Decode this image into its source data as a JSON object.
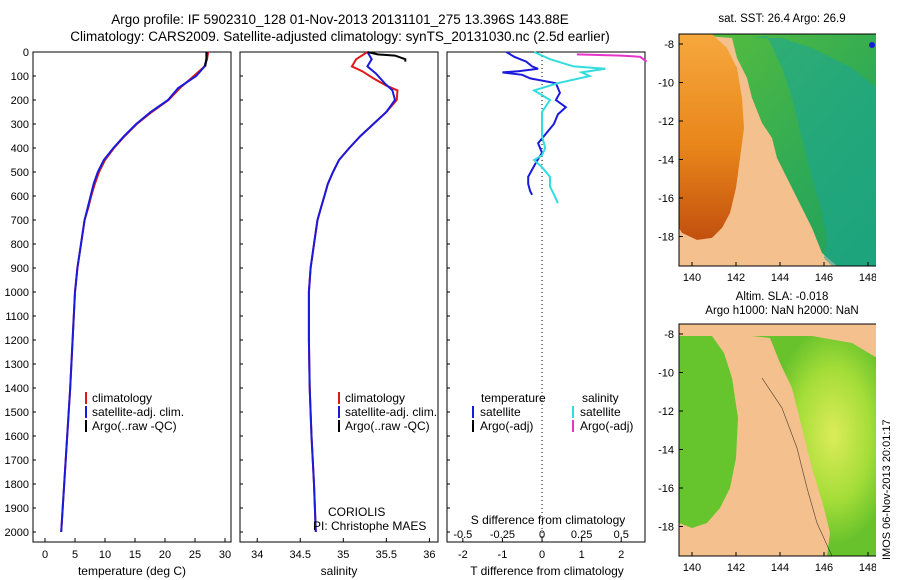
{
  "header": {
    "line1": "Argo profile: IF 5902310_128 01-Nov-2013 20131101_275 13.396S 143.88E",
    "line2": "Climatology: CARS2009. Satellite-adjusted climatology: synTS_20131030.nc (2.5d earlier)"
  },
  "depth_ticks": [
    "0",
    "100",
    "200",
    "300",
    "400",
    "500",
    "600",
    "700",
    "800",
    "900",
    "1000",
    "1100",
    "1200",
    "1300",
    "1400",
    "1500",
    "1600",
    "1700",
    "1800",
    "1900",
    "2000"
  ],
  "colors": {
    "climatology": "#dd1a1a",
    "satellite": "#1a1add",
    "argo": "#000000",
    "sat_salinity": "#33dddd",
    "argo_salinity": "#e633c8"
  },
  "panel_temp": {
    "xlabel": "temperature (deg C)",
    "xticks": [
      "0",
      "5",
      "10",
      "15",
      "20",
      "25",
      "30"
    ],
    "legend": [
      "climatology",
      "satellite-adj. clim.",
      "Argo(..raw -QC)"
    ]
  },
  "panel_sal": {
    "xlabel": "salinity",
    "xticks": [
      "34",
      "34.5",
      "35",
      "35.5",
      "36"
    ],
    "legend": [
      "climatology",
      "satellite-adj. clim.",
      "Argo(..raw -QC)"
    ],
    "credit1": "CORIOLIS",
    "credit2": "PI: Christophe MAES"
  },
  "panel_diff": {
    "xlabel": "T difference from climatology",
    "toplabel": "S difference from climatology",
    "xticks_T": [
      "-2",
      "-1",
      "0",
      "1",
      "2"
    ],
    "xticks_S": [
      "-0.5",
      "-0.25",
      "0",
      "0.25",
      "0.5"
    ],
    "legend_t_head": "temperature",
    "legend_s_head": "salinity",
    "legend_t": [
      "satellite",
      "Argo(-adj)"
    ],
    "legend_s": [
      "satellite",
      "Argo(-adj)"
    ]
  },
  "map_sst": {
    "title": "sat. SST: 26.4 Argo: 26.9",
    "yticks": [
      "-8",
      "-10",
      "-12",
      "-14",
      "-16",
      "-18"
    ],
    "xticks": [
      "140",
      "142",
      "144",
      "146",
      "148"
    ]
  },
  "map_sla": {
    "title1": "Altim. SLA: -0.018",
    "title2": "Argo h1000: NaN h2000: NaN",
    "yticks": [
      "-8",
      "-10",
      "-12",
      "-14",
      "-16",
      "-18"
    ],
    "xticks": [
      "140",
      "142",
      "144",
      "146",
      "148"
    ]
  },
  "stamp": "IMOS 06-Nov-2013 20:01:17",
  "chart_data": [
    {
      "type": "line",
      "xlabel": "temperature (deg C)",
      "ylabel": "",
      "xlim": [
        -2,
        31
      ],
      "ylim": [
        2000,
        0
      ],
      "series": [
        {
          "name": "climatology",
          "points": [
            [
              27.2,
              0
            ],
            [
              27.0,
              30
            ],
            [
              26.6,
              60
            ],
            [
              24.8,
              100
            ],
            [
              22.5,
              150
            ],
            [
              20.6,
              200
            ],
            [
              17.8,
              250
            ],
            [
              15.3,
              300
            ],
            [
              13.3,
              350
            ],
            [
              11.5,
              400
            ],
            [
              10.0,
              450
            ],
            [
              9.0,
              500
            ],
            [
              8.3,
              550
            ],
            [
              7.7,
              600
            ],
            [
              7.2,
              650
            ],
            [
              6.6,
              700
            ],
            [
              6.0,
              800
            ],
            [
              5.4,
              900
            ],
            [
              5.0,
              1000
            ],
            [
              4.6,
              1200
            ],
            [
              4.2,
              1400
            ],
            [
              3.7,
              1600
            ],
            [
              3.2,
              1800
            ],
            [
              2.7,
              2000
            ]
          ]
        },
        {
          "name": "satellite-adj. clim.",
          "points": [
            [
              27.0,
              0
            ],
            [
              26.9,
              30
            ],
            [
              26.6,
              60
            ],
            [
              25.2,
              100
            ],
            [
              22.2,
              150
            ],
            [
              20.5,
              200
            ],
            [
              17.6,
              250
            ],
            [
              15.2,
              300
            ],
            [
              13.2,
              350
            ],
            [
              11.4,
              400
            ],
            [
              9.8,
              450
            ],
            [
              8.8,
              500
            ],
            [
              8.1,
              550
            ],
            [
              7.6,
              600
            ],
            [
              7.1,
              650
            ],
            [
              6.6,
              700
            ],
            [
              6.0,
              800
            ],
            [
              5.4,
              900
            ],
            [
              5.0,
              1000
            ],
            [
              4.6,
              1200
            ],
            [
              4.2,
              1400
            ],
            [
              3.7,
              1600
            ],
            [
              3.2,
              1800
            ],
            [
              2.7,
              2000
            ]
          ]
        },
        {
          "name": "Argo(..raw -QC)",
          "points": [
            [
              26.9,
              0
            ],
            [
              26.9,
              30
            ],
            [
              26.7,
              60
            ]
          ]
        }
      ]
    },
    {
      "type": "line",
      "xlabel": "salinity",
      "ylabel": "",
      "xlim": [
        33.8,
        36.1
      ],
      "ylim": [
        2000,
        0
      ],
      "series": [
        {
          "name": "climatology",
          "points": [
            [
              35.28,
              0
            ],
            [
              35.15,
              30
            ],
            [
              35.1,
              60
            ],
            [
              35.22,
              80
            ],
            [
              35.35,
              110
            ],
            [
              35.5,
              140
            ],
            [
              35.63,
              160
            ],
            [
              35.62,
              200
            ],
            [
              35.5,
              250
            ],
            [
              35.35,
              300
            ],
            [
              35.2,
              350
            ],
            [
              35.07,
              400
            ],
            [
              34.95,
              450
            ],
            [
              34.88,
              500
            ],
            [
              34.82,
              550
            ],
            [
              34.78,
              600
            ],
            [
              34.74,
              650
            ],
            [
              34.7,
              700
            ],
            [
              34.66,
              800
            ],
            [
              34.62,
              900
            ],
            [
              34.6,
              1000
            ],
            [
              34.6,
              1200
            ],
            [
              34.61,
              1400
            ],
            [
              34.63,
              1600
            ],
            [
              34.66,
              1800
            ],
            [
              34.68,
              2000
            ]
          ]
        },
        {
          "name": "satellite-adj. clim.",
          "points": [
            [
              35.28,
              0
            ],
            [
              35.33,
              30
            ],
            [
              35.28,
              60
            ],
            [
              35.38,
              90
            ],
            [
              35.48,
              130
            ],
            [
              35.57,
              160
            ],
            [
              35.6,
              200
            ],
            [
              35.5,
              250
            ],
            [
              35.35,
              300
            ],
            [
              35.2,
              350
            ],
            [
              35.07,
              400
            ],
            [
              34.95,
              450
            ],
            [
              34.88,
              500
            ],
            [
              34.82,
              550
            ],
            [
              34.78,
              600
            ],
            [
              34.74,
              650
            ],
            [
              34.7,
              700
            ],
            [
              34.66,
              800
            ],
            [
              34.62,
              900
            ],
            [
              34.6,
              1000
            ],
            [
              34.6,
              1200
            ],
            [
              34.61,
              1400
            ],
            [
              34.63,
              1600
            ],
            [
              34.66,
              1800
            ],
            [
              34.68,
              2000
            ]
          ]
        },
        {
          "name": "Argo(..raw -QC)",
          "points": [
            [
              35.28,
              0
            ],
            [
              35.4,
              10
            ],
            [
              35.6,
              15
            ],
            [
              35.72,
              30
            ],
            [
              35.72,
              40
            ]
          ]
        }
      ]
    },
    {
      "type": "line",
      "xlabel": "T difference from climatology",
      "ylabel": "",
      "xlim": [
        -2.4,
        2.6
      ],
      "ylim": [
        2000,
        0
      ],
      "series": [
        {
          "name": "satellite",
          "axis": "T",
          "points": [
            [
              -0.9,
              0
            ],
            [
              -0.7,
              20
            ],
            [
              -0.4,
              40
            ],
            [
              -0.25,
              60
            ],
            [
              -0.1,
              70
            ],
            [
              -0.6,
              80
            ],
            [
              -1.0,
              85
            ],
            [
              -0.5,
              95
            ],
            [
              -0.3,
              110
            ],
            [
              0.35,
              130
            ],
            [
              0.4,
              150
            ],
            [
              0.45,
              170
            ],
            [
              0.35,
              200
            ],
            [
              0.6,
              230
            ],
            [
              0.4,
              260
            ],
            [
              0.3,
              300
            ],
            [
              0.1,
              340
            ],
            [
              -0.1,
              380
            ],
            [
              0.0,
              420
            ],
            [
              -0.15,
              460
            ],
            [
              -0.25,
              490
            ],
            [
              -0.35,
              520
            ],
            [
              -0.35,
              550
            ],
            [
              -0.3,
              580
            ],
            [
              -0.25,
              595
            ]
          ]
        },
        {
          "name": "Argo(-adj)",
          "axis": "T",
          "points": []
        },
        {
          "name": "satellite",
          "axis": "S",
          "points": [
            [
              -0.05,
              0
            ],
            [
              0.05,
              30
            ],
            [
              0.2,
              60
            ],
            [
              0.4,
              70
            ],
            [
              0.25,
              85
            ],
            [
              0.3,
              100
            ],
            [
              0.1,
              130
            ],
            [
              -0.05,
              160
            ],
            [
              0.05,
              200
            ],
            [
              0.0,
              250
            ],
            [
              0.0,
              300
            ],
            [
              0.0,
              350
            ],
            [
              0.02,
              400
            ],
            [
              0.0,
              430
            ],
            [
              -0.05,
              450
            ],
            [
              0.0,
              480
            ],
            [
              0.05,
              520
            ],
            [
              0.05,
              560
            ],
            [
              0.08,
              600
            ],
            [
              0.1,
              630
            ]
          ]
        },
        {
          "name": "Argo(-adj)",
          "axis": "S",
          "points": [
            [
              0.22,
              10
            ],
            [
              0.5,
              15
            ],
            [
              0.62,
              20
            ],
            [
              0.66,
              40
            ]
          ]
        }
      ]
    }
  ]
}
